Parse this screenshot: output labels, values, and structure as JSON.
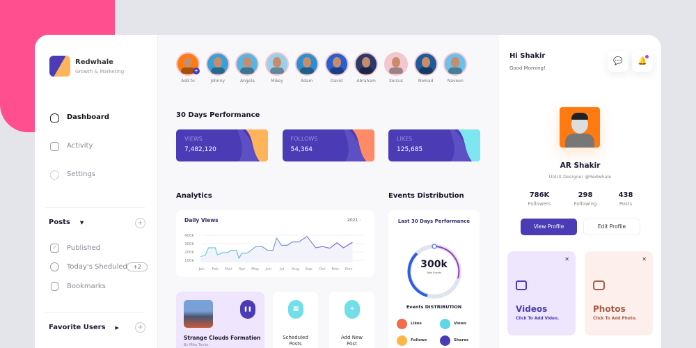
{
  "brand": {
    "name": "Redwhale",
    "tagline": "Growth & Marketing"
  },
  "nav": [
    {
      "label": "Dashboard",
      "icon": "home-icon",
      "active": true
    },
    {
      "label": "Activity",
      "icon": "calendar-icon"
    },
    {
      "label": "Settings",
      "icon": "gear-icon"
    }
  ],
  "posts": {
    "title": "Posts",
    "items": [
      {
        "label": "Published",
        "icon": "check-icon"
      },
      {
        "label": "Today's Sheduled",
        "icon": "clock-icon",
        "badge": "+2"
      },
      {
        "label": "Bookmarks",
        "icon": "bookmark-icon"
      }
    ]
  },
  "favorites": {
    "title": "Favorite Users"
  },
  "users": [
    "Add to",
    "Johnny",
    "Angela",
    "Mikey",
    "Adam",
    "David",
    "Abraham",
    "Xersus",
    "Nomad",
    "Naveen"
  ],
  "performance": {
    "title": "30 Days Performance",
    "cards": [
      {
        "label": "VIEWS",
        "value": "7,482,120",
        "accent": "#ffb45c"
      },
      {
        "label": "FOLLOWS",
        "value": "54,364",
        "accent": "#ff8a65"
      },
      {
        "label": "LIKES",
        "value": "125,685",
        "accent": "#7ee6f0"
      }
    ]
  },
  "analytics": {
    "title": "Analytics",
    "chart_title": "Daily Views",
    "year": "2021"
  },
  "chart_data": {
    "type": "line",
    "title": "Daily Views",
    "categories": [
      "Jan",
      "Feb",
      "Mar",
      "Apr",
      "May",
      "Jun",
      "Jul",
      "Aug",
      "Sep",
      "Oct",
      "Nov",
      "Dec"
    ],
    "yticks": [
      "400k",
      "300k",
      "200k",
      "100k"
    ],
    "ylim": [
      50,
      400
    ],
    "x": [
      -0.1,
      0.25,
      0.5,
      1.0,
      1.17,
      1.53,
      1.93,
      2.17,
      2.58,
      2.78,
      2.99,
      3.4,
      4.03,
      4.51,
      4.91,
      5.31,
      5.6,
      5.96,
      6.41,
      6.76,
      7.25,
      7.86,
      8.53,
      9.02,
      9.58,
      10.11,
      10.6,
      11.27
    ],
    "values": [
      145,
      160,
      250,
      250,
      165,
      190,
      190,
      220,
      220,
      125,
      185,
      185,
      265,
      265,
      220,
      220,
      365,
      280,
      280,
      320,
      320,
      385,
      250,
      265,
      245,
      310,
      250,
      315
    ]
  },
  "events": {
    "title": "Events Distribution",
    "card_title": "Last 30 Days Performance",
    "total": "300k",
    "total_label": "Total Events",
    "dist_title": "Events DISTRIBUTION",
    "legend": [
      {
        "label": "Likes",
        "color": "#f26b4b"
      },
      {
        "label": "Views",
        "color": "#5fd6e6"
      },
      {
        "label": "Follows",
        "color": "#ffb547"
      },
      {
        "label": "Shares",
        "color": "#4b3cb5"
      }
    ]
  },
  "media": {
    "title": "Strange Clouds Formation",
    "author": "By Mike Taylor"
  },
  "quick": [
    {
      "label1": "Scheduled",
      "label2": "Posts"
    },
    {
      "label1": "Add New",
      "label2": "Post"
    }
  ],
  "greeting": {
    "title": "Hi Shakir",
    "subtitle": "Good Morning!"
  },
  "profile": {
    "name": "AR Shakir",
    "role": "UI/UX Designer @Redwhale",
    "stats": [
      {
        "value": "786K",
        "label": "Followers"
      },
      {
        "value": "298",
        "label": "Following"
      },
      {
        "value": "438",
        "label": "Posts"
      }
    ],
    "view": "View Profile",
    "edit": "Edit Profile"
  },
  "tiles": [
    {
      "title": "Videos",
      "sub": "Click To Add Video.",
      "bg": "#eee6fd",
      "color": "#4b3cb5"
    },
    {
      "title": "Photos",
      "sub": "Click To Add Photo.",
      "bg": "#fdf0ec",
      "color": "#a85a48"
    }
  ]
}
